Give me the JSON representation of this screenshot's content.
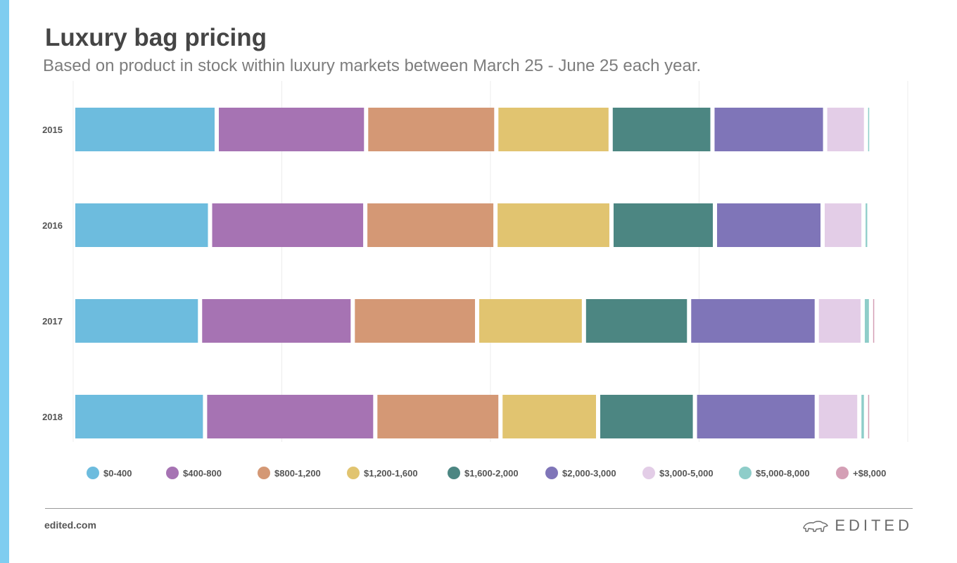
{
  "header": {
    "title": "Luxury bag pricing",
    "subtitle": "Based on product in stock within luxury markets between March 25 - June 25 each year."
  },
  "footer": {
    "site": "edited.com",
    "brand": "EDITED"
  },
  "chart_data": {
    "type": "bar",
    "orientation": "horizontal",
    "stacked": true,
    "title": "Luxury bag pricing",
    "subtitle": "Based on product in stock within luxury markets between March 25 - June 25 each year.",
    "categories": [
      "2015",
      "2016",
      "2017",
      "2018"
    ],
    "xlim": [
      0,
      100
    ],
    "grid": true,
    "legend_position": "bottom",
    "series": [
      {
        "name": "$0-400",
        "color": "#6dbcde",
        "values": [
          17.2,
          16.4,
          15.2,
          15.8
        ]
      },
      {
        "name": "$400-800",
        "color": "#a673b3",
        "values": [
          17.9,
          18.6,
          18.3,
          20.4
        ]
      },
      {
        "name": "$800-1,200",
        "color": "#d49875",
        "values": [
          15.6,
          15.6,
          14.9,
          15.0
        ]
      },
      {
        "name": "$1,200-1,600",
        "color": "#e1c470",
        "values": [
          13.7,
          13.9,
          12.8,
          11.7
        ]
      },
      {
        "name": "$1,600-2,000",
        "color": "#4c8682",
        "values": [
          12.2,
          12.4,
          12.6,
          11.6
        ]
      },
      {
        "name": "$2,000-3,000",
        "color": "#7f75b8",
        "values": [
          13.5,
          12.9,
          15.3,
          14.6
        ]
      },
      {
        "name": "$3,000-5,000",
        "color": "#e3cde7",
        "values": [
          4.9,
          4.9,
          5.5,
          5.1
        ]
      },
      {
        "name": "$5,000-8,000",
        "color": "#8ecdc9",
        "values": [
          0.6,
          0.7,
          1.0,
          0.8
        ]
      },
      {
        "name": "+$8,000",
        "color": "#d49fb5",
        "values": [
          0.0,
          0.0,
          0.2,
          0.2
        ]
      }
    ]
  }
}
